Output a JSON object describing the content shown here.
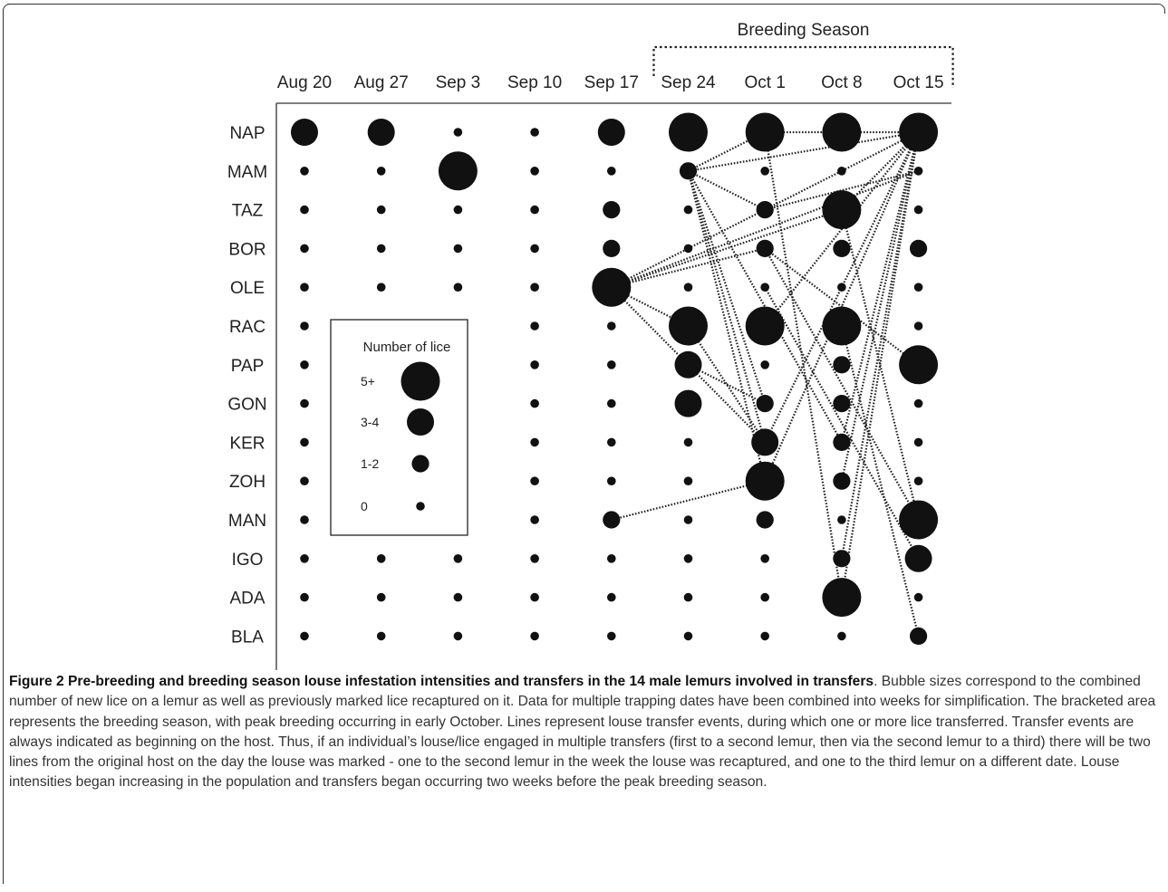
{
  "chart_data": {
    "type": "scatter",
    "subtype": "bubble-grid",
    "x": [
      "Aug 20",
      "Aug 27",
      "Sep 3",
      "Sep 10",
      "Sep 17",
      "Sep 24",
      "Oct 1",
      "Oct 8",
      "Oct 15"
    ],
    "y": [
      "NAP",
      "MAM",
      "TAZ",
      "BOR",
      "OLE",
      "RAC",
      "PAP",
      "GON",
      "KER",
      "ZOH",
      "MAN",
      "IGO",
      "ADA",
      "BLA"
    ],
    "size_categories": [
      "0",
      "1-2",
      "3-4",
      "5+"
    ],
    "values": [
      [
        2,
        2,
        0,
        0,
        2,
        3,
        3,
        3,
        3
      ],
      [
        0,
        0,
        3,
        0,
        0,
        1,
        0,
        0,
        0
      ],
      [
        0,
        0,
        0,
        0,
        1,
        0,
        1,
        3,
        0
      ],
      [
        0,
        0,
        0,
        0,
        1,
        0,
        1,
        1,
        1
      ],
      [
        0,
        0,
        0,
        0,
        3,
        0,
        0,
        0,
        0
      ],
      [
        0,
        0,
        0,
        0,
        0,
        3,
        3,
        3,
        0
      ],
      [
        0,
        0,
        0,
        0,
        0,
        2,
        0,
        1,
        3
      ],
      [
        0,
        0,
        0,
        0,
        0,
        2,
        1,
        1,
        0
      ],
      [
        0,
        0,
        0,
        0,
        0,
        0,
        2,
        1,
        0
      ],
      [
        0,
        0,
        0,
        0,
        0,
        0,
        3,
        1,
        0
      ],
      [
        0,
        0,
        0,
        0,
        1,
        0,
        1,
        0,
        3
      ],
      [
        0,
        0,
        0,
        0,
        0,
        0,
        0,
        1,
        2
      ],
      [
        0,
        0,
        0,
        0,
        0,
        0,
        0,
        3,
        0
      ],
      [
        0,
        0,
        0,
        0,
        0,
        0,
        0,
        0,
        1
      ]
    ],
    "transfers": [
      [
        "OLE",
        "Sep 17",
        "MAM",
        "Oct 15"
      ],
      [
        "OLE",
        "Sep 17",
        "TAZ",
        "Oct 8"
      ],
      [
        "OLE",
        "Sep 17",
        "NAP",
        "Oct 15"
      ],
      [
        "OLE",
        "Sep 17",
        "BOR",
        "Oct 1"
      ],
      [
        "OLE",
        "Sep 17",
        "RAC",
        "Sep 24"
      ],
      [
        "OLE",
        "Sep 17",
        "PAP",
        "Sep 24"
      ],
      [
        "MAM",
        "Sep 24",
        "NAP",
        "Oct 15"
      ],
      [
        "MAM",
        "Sep 24",
        "TAZ",
        "Oct 1"
      ],
      [
        "MAM",
        "Sep 24",
        "KER",
        "Oct 1"
      ],
      [
        "MAM",
        "Sep 24",
        "ZOH",
        "Oct 1"
      ],
      [
        "MAM",
        "Sep 24",
        "GON",
        "Oct 1"
      ],
      [
        "MAM",
        "Sep 24",
        "KER",
        "Oct 8"
      ],
      [
        "MAM",
        "Sep 24",
        "NAP",
        "Oct 1"
      ],
      [
        "PAP",
        "Sep 24",
        "GON",
        "Oct 1"
      ],
      [
        "PAP",
        "Sep 24",
        "KER",
        "Oct 1"
      ],
      [
        "RAC",
        "Sep 24",
        "KER",
        "Oct 1"
      ],
      [
        "NAP",
        "Oct 1",
        "NAP",
        "Oct 15"
      ],
      [
        "NAP",
        "Oct 1",
        "ADA",
        "Oct 8"
      ],
      [
        "TAZ",
        "Oct 1",
        "MAM",
        "Oct 15"
      ],
      [
        "BOR",
        "Oct 1",
        "PAP",
        "Oct 15"
      ],
      [
        "BOR",
        "Oct 1",
        "MAN",
        "Oct 15"
      ],
      [
        "OLE",
        "Oct 1",
        "IGO",
        "Oct 15"
      ],
      [
        "ZOH",
        "Oct 1",
        "MAN",
        "Sep 17"
      ],
      [
        "TAZ",
        "Oct 8",
        "NAP",
        "Oct 15"
      ],
      [
        "TAZ",
        "Oct 8",
        "MAN",
        "Oct 15"
      ],
      [
        "RAC",
        "Oct 8",
        "BLA",
        "Oct 15"
      ],
      [
        "NAP",
        "Oct 15",
        "KER",
        "Oct 1"
      ],
      [
        "NAP",
        "Oct 15",
        "ZOH",
        "Oct 1"
      ],
      [
        "NAP",
        "Oct 15",
        "RAC",
        "Oct 1"
      ],
      [
        "NAP",
        "Oct 15",
        "ZOH",
        "Oct 8"
      ],
      [
        "NAP",
        "Oct 15",
        "IGO",
        "Oct 8"
      ],
      [
        "NAP",
        "Oct 15",
        "KER",
        "Oct 8"
      ],
      [
        "NAP",
        "Oct 15",
        "ADA",
        "Oct 8"
      ]
    ],
    "bracket": {
      "label": "Breeding Season",
      "from": "Sep 24",
      "to": "Oct 15"
    },
    "legend": {
      "title": "Number of lice",
      "entries": [
        "5+",
        "3-4",
        "1-2",
        "0"
      ],
      "placement": "center-left"
    },
    "title": "",
    "xlabel": "",
    "ylabel": "",
    "grid": false,
    "colors": {
      "bubble": "#111111",
      "line": "#222222",
      "axis": "#333333"
    }
  },
  "caption": {
    "title": "Figure 2 Pre-breeding and breeding season louse infestation intensities and transfers in the 14 male lemurs involved in transfers",
    "title_end": ".",
    "body": "Bubble sizes correspond to the combined number of new lice on a lemur as well as previously marked lice recaptured on it. Data for multiple trapping dates have been combined into weeks for simplification. The bracketed area represents the breeding season, with peak breeding occurring in early October. Lines represent louse transfer events, during which one or more lice transferred. Transfer events are always indicated as beginning on the host. Thus, if an individual’s louse/lice engaged in multiple transfers (first to a second lemur, then via the second lemur to a third) there will be two lines from the original host on the day the louse was marked - one to the second lemur in the week the louse was recaptured, and one to the third lemur on a different date. Louse intensities began increasing in the population and transfers began occurring two weeks before the peak breeding season."
  }
}
